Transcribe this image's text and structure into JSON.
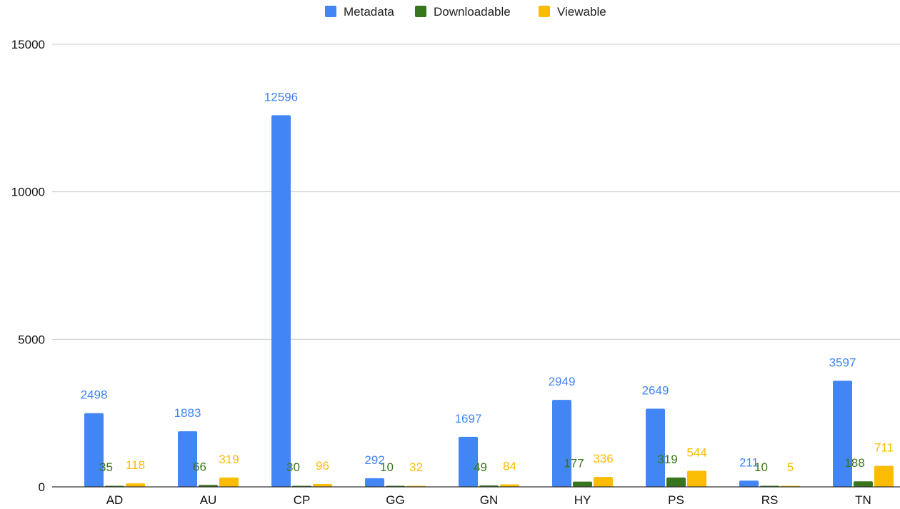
{
  "chart_data": {
    "type": "bar",
    "title": "",
    "xlabel": "",
    "ylabel": "",
    "ylim": [
      0,
      15000
    ],
    "y_ticks": [
      0,
      5000,
      10000,
      15000
    ],
    "y_tick_labels": [
      "0",
      "5000",
      "10000",
      "15000"
    ],
    "grid": true,
    "legend_position": "top-center",
    "categories": [
      "AD",
      "AU",
      "CP",
      "GG",
      "GN",
      "HY",
      "PS",
      "RS",
      "TN"
    ],
    "series": [
      {
        "name": "Metadata",
        "color": "#4285f4",
        "values": [
          2498,
          1883,
          12596,
          292,
          1697,
          2949,
          2649,
          211,
          3597
        ]
      },
      {
        "name": "Downloadable",
        "color": "#38761d",
        "values": [
          35,
          66,
          30,
          10,
          49,
          177,
          319,
          10,
          188
        ]
      },
      {
        "name": "Viewable",
        "color": "#fbbc04",
        "values": [
          118,
          319,
          96,
          32,
          84,
          336,
          544,
          5,
          711
        ]
      }
    ]
  }
}
